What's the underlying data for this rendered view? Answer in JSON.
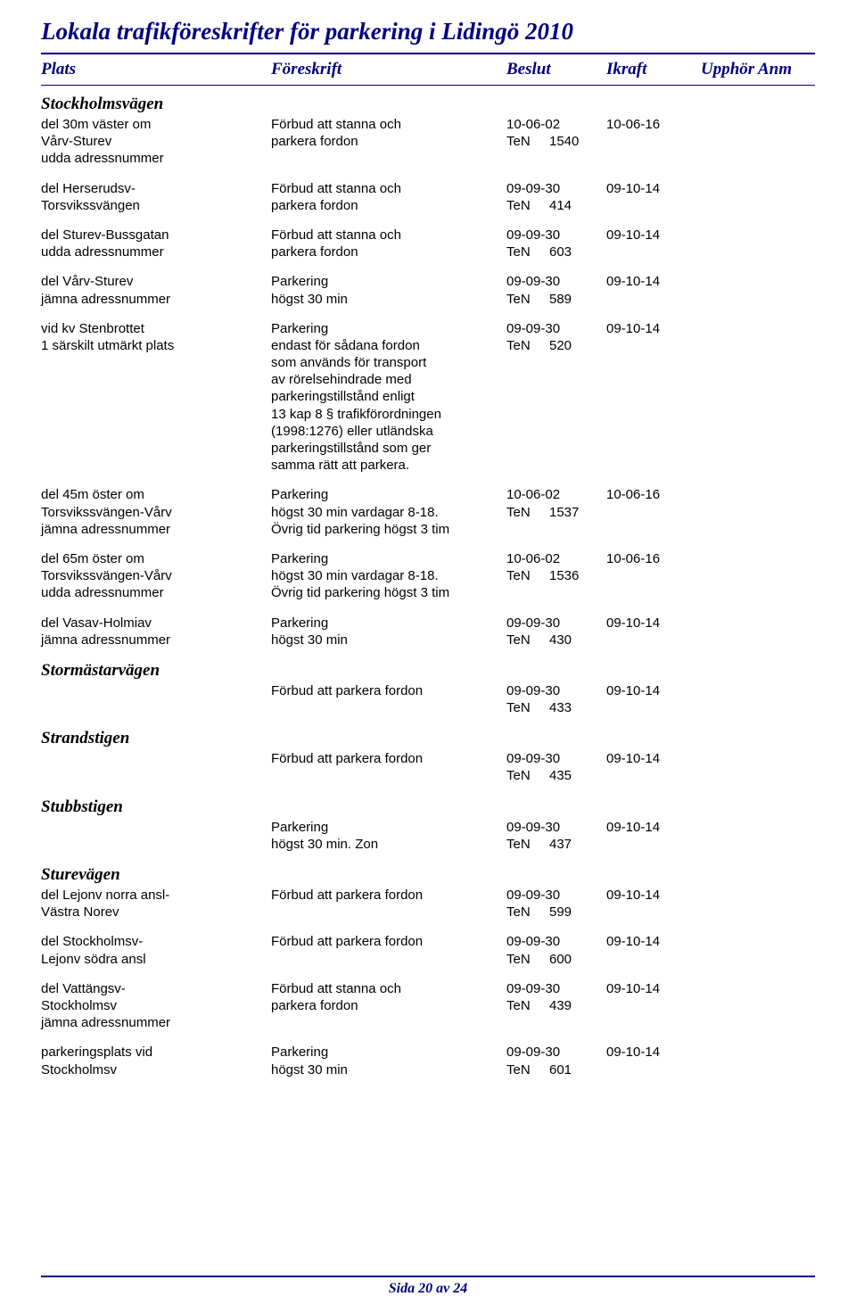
{
  "title": "Lokala trafikföreskrifter för parkering i Lidingö 2010",
  "headers": {
    "plats": "Plats",
    "foreskrift": "Föreskrift",
    "beslut": "Beslut",
    "ikraft": "Ikraft",
    "upphor": "Upphör",
    "anm": "Anm"
  },
  "sections": [
    {
      "heading": "Stockholmsvägen",
      "entries": [
        {
          "plats": "del 30m väster om\nVårv-Sturev\nudda adressnummer",
          "foreskrift": "Förbud att stanna och\nparkera fordon",
          "date": "10-06-02",
          "ten": "1540",
          "ikraft": "10-06-16"
        },
        {
          "plats": "del Herserudsv-\nTorsvikssvängen",
          "foreskrift": "Förbud att stanna och\nparkera fordon",
          "date": "09-09-30",
          "ten": "414",
          "ikraft": "09-10-14"
        },
        {
          "plats": "del Sturev-Bussgatan\nudda adressnummer",
          "foreskrift": "Förbud att stanna och\nparkera fordon",
          "date": "09-09-30",
          "ten": "603",
          "ikraft": "09-10-14"
        },
        {
          "plats": "del Vårv-Sturev\njämna adressnummer",
          "foreskrift": "Parkering\nhögst 30 min",
          "date": "09-09-30",
          "ten": "589",
          "ikraft": "09-10-14"
        },
        {
          "plats": "vid kv Stenbrottet\n1 särskilt utmärkt plats",
          "foreskrift": "Parkering\nendast för sådana fordon\nsom används för transport\nav rörelsehindrade med\nparkeringstillstånd enligt\n13 kap 8 § trafikförordningen\n(1998:1276) eller utländska\nparkeringstillstånd som ger\nsamma rätt att parkera.",
          "date": "09-09-30",
          "ten": "520",
          "ikraft": "09-10-14"
        },
        {
          "plats": "del 45m öster om\nTorsvikssvängen-Vårv\njämna adressnummer",
          "foreskrift": "Parkering\nhögst 30 min vardagar 8-18.\nÖvrig tid parkering högst 3 tim",
          "date": "10-06-02",
          "ten": "1537",
          "ikraft": "10-06-16"
        },
        {
          "plats": "del 65m öster om\nTorsvikssvängen-Vårv\nudda adressnummer",
          "foreskrift": "Parkering\nhögst 30 min vardagar 8-18.\nÖvrig tid parkering högst 3 tim",
          "date": "10-06-02",
          "ten": "1536",
          "ikraft": "10-06-16"
        },
        {
          "plats": "del Vasav-Holmiav\njämna adressnummer",
          "foreskrift": "Parkering\nhögst 30 min",
          "date": "09-09-30",
          "ten": "430",
          "ikraft": "09-10-14"
        }
      ]
    },
    {
      "heading": "Stormästarvägen",
      "entries": [
        {
          "plats": "",
          "foreskrift": "Förbud att parkera fordon",
          "date": "09-09-30",
          "ten": "433",
          "ikraft": "09-10-14"
        }
      ]
    },
    {
      "heading": "Strandstigen",
      "entries": [
        {
          "plats": "",
          "foreskrift": "Förbud att parkera fordon",
          "date": "09-09-30",
          "ten": "435",
          "ikraft": "09-10-14"
        }
      ]
    },
    {
      "heading": "Stubbstigen",
      "entries": [
        {
          "plats": "",
          "foreskrift": "Parkering\nhögst 30 min. Zon",
          "date": "09-09-30",
          "ten": "437",
          "ikraft": "09-10-14"
        }
      ]
    },
    {
      "heading": "Sturevägen",
      "entries": [
        {
          "plats": "del Lejonv norra ansl-\nVästra Norev",
          "foreskrift": "Förbud att parkera fordon",
          "date": "09-09-30",
          "ten": "599",
          "ikraft": "09-10-14"
        },
        {
          "plats": "del Stockholmsv-\nLejonv södra ansl",
          "foreskrift": "Förbud att parkera fordon",
          "date": "09-09-30",
          "ten": "600",
          "ikraft": "09-10-14"
        },
        {
          "plats": "del Vattängsv-\nStockholmsv\njämna adressnummer",
          "foreskrift": "Förbud att stanna och\nparkera fordon",
          "date": "09-09-30",
          "ten": "439",
          "ikraft": "09-10-14"
        },
        {
          "plats": "parkeringsplats vid\nStockholmsv",
          "foreskrift": "Parkering\nhögst 30 min",
          "date": "09-09-30",
          "ten": "601",
          "ikraft": "09-10-14"
        }
      ]
    }
  ],
  "ten_label": "TeN",
  "footer": "Sida 20 av 24"
}
